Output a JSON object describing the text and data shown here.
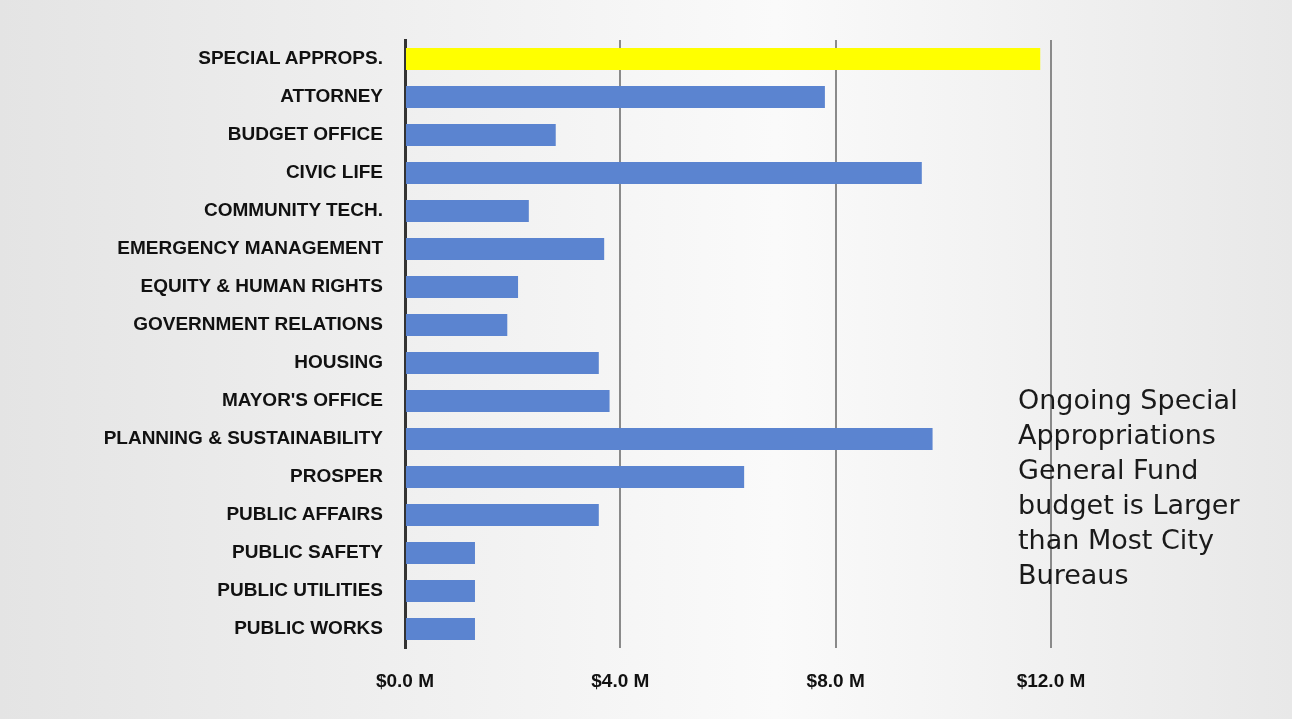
{
  "chart_data": {
    "type": "bar",
    "orientation": "horizontal",
    "categories": [
      "SPECIAL APPROPS.",
      "ATTORNEY",
      "BUDGET OFFICE",
      "CIVIC LIFE",
      "COMMUNITY TECH.",
      "EMERGENCY MANAGEMENT",
      "EQUITY & HUMAN RIGHTS",
      "GOVERNMENT RELATIONS",
      "HOUSING",
      "MAYOR'S OFFICE",
      "PLANNING & SUSTAINABILITY",
      "PROSPER",
      "PUBLIC AFFAIRS",
      "PUBLIC SAFETY",
      "PUBLIC UTILITIES",
      "PUBLIC WORKS"
    ],
    "values": [
      11.8,
      7.8,
      2.8,
      9.6,
      2.3,
      3.7,
      2.1,
      1.9,
      3.6,
      3.8,
      9.8,
      6.3,
      3.6,
      1.3,
      1.3,
      1.3
    ],
    "colors": [
      "#ffff00",
      "#5b84d0",
      "#5b84d0",
      "#5b84d0",
      "#5b84d0",
      "#5b84d0",
      "#5b84d0",
      "#5b84d0",
      "#5b84d0",
      "#5b84d0",
      "#5b84d0",
      "#5b84d0",
      "#5b84d0",
      "#5b84d0",
      "#5b84d0",
      "#5b84d0"
    ],
    "xlim": [
      0,
      12
    ],
    "xticks": [
      {
        "value": 0,
        "label": "$0.0 M"
      },
      {
        "value": 4,
        "label": "$4.0 M"
      },
      {
        "value": 8,
        "label": "$8.0 M"
      },
      {
        "value": 12,
        "label": "$12.0 M"
      }
    ],
    "grid": "x",
    "legend": false,
    "annotations": [
      "Ongoing Special Appropriations General Fund budget is Larger than Most City Bureaus"
    ]
  }
}
